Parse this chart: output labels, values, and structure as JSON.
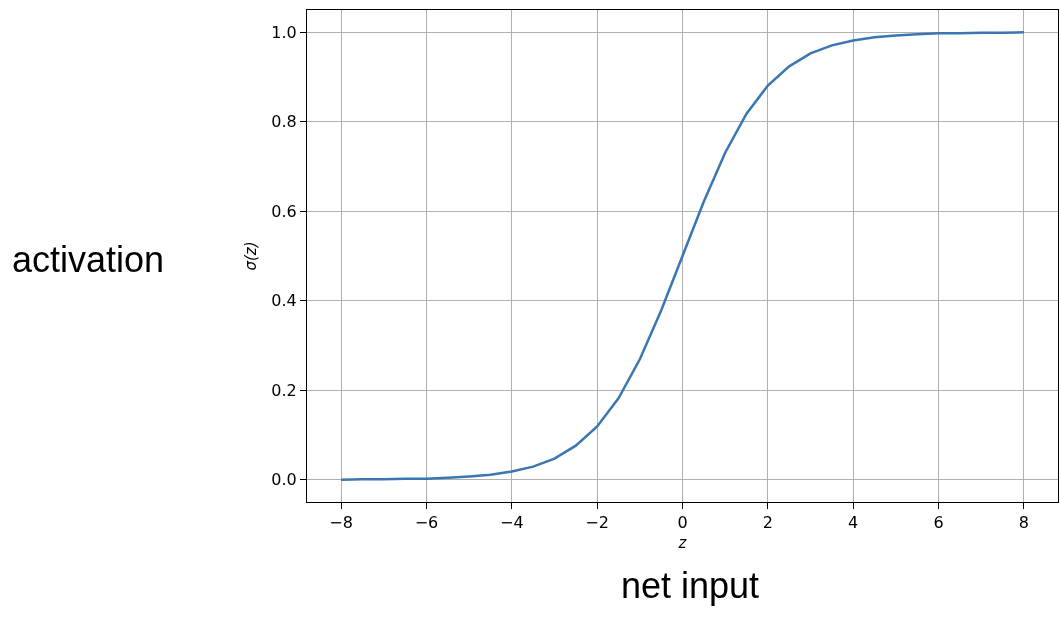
{
  "chart_data": {
    "type": "line",
    "xlabel": "z",
    "ylabel": "σ(z)",
    "annotations": [
      "activation",
      "net input"
    ],
    "x": [
      -8,
      -7.5,
      -7,
      -6.5,
      -6,
      -5.5,
      -5,
      -4.5,
      -4,
      -3.5,
      -3,
      -2.5,
      -2,
      -1.5,
      -1,
      -0.5,
      0,
      0.5,
      1,
      1.5,
      2,
      2.5,
      3,
      3.5,
      4,
      4.5,
      5,
      5.5,
      6,
      6.5,
      7,
      7.5,
      8
    ],
    "series": [
      {
        "color": "#3a76b1",
        "values": [
          0.0,
          0.001,
          0.001,
          0.002,
          0.002,
          0.004,
          0.007,
          0.011,
          0.018,
          0.029,
          0.047,
          0.076,
          0.119,
          0.182,
          0.269,
          0.378,
          0.5,
          0.622,
          0.731,
          0.818,
          0.881,
          0.924,
          0.953,
          0.971,
          0.982,
          0.989,
          0.993,
          0.996,
          0.998,
          0.998,
          0.999,
          0.999,
          1.0
        ]
      }
    ],
    "xlim": [
      -8.8,
      8.8
    ],
    "xticks": [
      {
        "value": -8,
        "label": "−8"
      },
      {
        "value": -6,
        "label": "−6"
      },
      {
        "value": -4,
        "label": "−4"
      },
      {
        "value": -2,
        "label": "−2"
      },
      0,
      2,
      4,
      6,
      8
    ],
    "ylim": [
      -0.05,
      1.05
    ],
    "yticks": [
      {
        "value": 0,
        "label": "0.0"
      },
      {
        "value": 0.2,
        "label": "0.2"
      },
      {
        "value": 0.4,
        "label": "0.4"
      },
      {
        "value": 0.6,
        "label": "0.6"
      },
      {
        "value": 0.8,
        "label": "0.8"
      },
      {
        "value": 1,
        "label": "1.0"
      }
    ],
    "grid": true,
    "line_style": "solid",
    "marker": "none"
  }
}
